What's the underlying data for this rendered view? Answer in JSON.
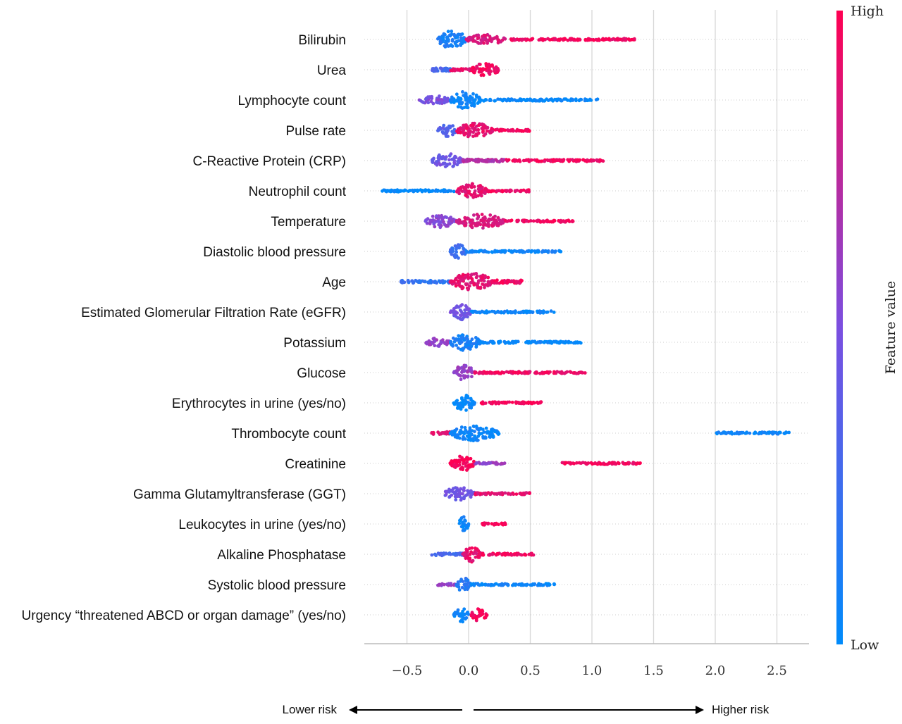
{
  "chart_data": {
    "type": "scatter",
    "subtype": "beeswarm",
    "title": "",
    "xlabel": "",
    "xlim": [
      -0.85,
      2.75
    ],
    "xticks": [
      -0.5,
      0.0,
      0.5,
      1.0,
      1.5,
      2.0,
      2.5
    ],
    "xtick_labels": [
      "−0.5",
      "0.0",
      "0.5",
      "1.0",
      "1.5",
      "2.0",
      "2.5"
    ],
    "grid": true,
    "colorbar": {
      "label": "Feature value",
      "high_label": "High",
      "low_label": "Low",
      "high_color": "#ff0052",
      "mid_color": "#7b4fe0",
      "low_color": "#008bfb"
    },
    "risk_axis": {
      "left_label": "Lower risk",
      "right_label": "Higher risk"
    },
    "features": [
      {
        "name": "Bilirubin",
        "segments": [
          [
            -0.25,
            -0.02,
            0.1,
            13
          ],
          [
            -0.02,
            0.3,
            0.85,
            7
          ],
          [
            0.3,
            1.35,
            0.95,
            3
          ]
        ]
      },
      {
        "name": "Urea",
        "segments": [
          [
            -0.3,
            -0.15,
            0.3,
            5
          ],
          [
            -0.15,
            0.02,
            0.9,
            3
          ],
          [
            0.02,
            0.25,
            0.95,
            9
          ]
        ]
      },
      {
        "name": "Lymphocyte count",
        "segments": [
          [
            -0.4,
            -0.15,
            0.5,
            6
          ],
          [
            -0.15,
            0.1,
            0.05,
            12
          ],
          [
            0.1,
            1.05,
            0.02,
            3
          ]
        ]
      },
      {
        "name": "Pulse rate",
        "segments": [
          [
            -0.25,
            -0.1,
            0.35,
            9
          ],
          [
            -0.1,
            0.2,
            0.9,
            10
          ],
          [
            0.2,
            0.5,
            0.95,
            3
          ]
        ]
      },
      {
        "name": "C-Reactive Protein (CRP)",
        "segments": [
          [
            -0.3,
            -0.05,
            0.45,
            10
          ],
          [
            -0.05,
            0.3,
            0.7,
            4
          ],
          [
            0.3,
            1.1,
            0.95,
            3
          ]
        ]
      },
      {
        "name": "Neutrophil count",
        "segments": [
          [
            -0.7,
            -0.1,
            0.02,
            3
          ],
          [
            -0.1,
            0.15,
            0.9,
            11
          ],
          [
            0.15,
            0.5,
            0.95,
            3
          ]
        ]
      },
      {
        "name": "Temperature",
        "segments": [
          [
            -0.35,
            -0.1,
            0.55,
            9
          ],
          [
            -0.1,
            0.3,
            0.85,
            10
          ],
          [
            0.3,
            0.85,
            0.95,
            3
          ]
        ]
      },
      {
        "name": "Diastolic blood pressure",
        "segments": [
          [
            -0.15,
            -0.02,
            0.25,
            10
          ],
          [
            -0.02,
            0.75,
            0.05,
            3
          ]
        ]
      },
      {
        "name": "Age",
        "segments": [
          [
            -0.55,
            -0.15,
            0.2,
            4
          ],
          [
            -0.15,
            0.2,
            0.9,
            12
          ],
          [
            0.2,
            0.45,
            0.95,
            5
          ]
        ]
      },
      {
        "name": "Estimated Glomerular Filtration Rate (eGFR)",
        "segments": [
          [
            -0.15,
            0.02,
            0.45,
            11
          ],
          [
            0.02,
            0.7,
            0.05,
            3
          ]
        ]
      },
      {
        "name": "Potassium",
        "segments": [
          [
            -0.35,
            -0.15,
            0.6,
            6
          ],
          [
            -0.15,
            0.1,
            0.1,
            12
          ],
          [
            0.1,
            0.92,
            0.03,
            3
          ]
        ]
      },
      {
        "name": "Glucose",
        "segments": [
          [
            -0.12,
            0.05,
            0.6,
            11
          ],
          [
            0.05,
            0.95,
            0.93,
            3
          ]
        ]
      },
      {
        "name": "Erythrocytes in urine (yes/no)",
        "segments": [
          [
            -0.12,
            0.05,
            0.02,
            11
          ],
          [
            0.1,
            0.6,
            0.98,
            3
          ]
        ]
      },
      {
        "name": "Thrombocyte count",
        "segments": [
          [
            -0.3,
            -0.15,
            0.9,
            4
          ],
          [
            -0.15,
            0.25,
            0.05,
            11
          ],
          [
            2.0,
            2.6,
            0.05,
            3
          ]
        ]
      },
      {
        "name": "Creatinine",
        "segments": [
          [
            -0.15,
            0.05,
            0.98,
            11
          ],
          [
            0.05,
            0.3,
            0.6,
            3
          ],
          [
            0.75,
            1.4,
            0.95,
            3
          ]
        ]
      },
      {
        "name": "Gamma Glutamyltransferase (GGT)",
        "segments": [
          [
            -0.2,
            0.05,
            0.45,
            10
          ],
          [
            0.05,
            0.5,
            0.9,
            3
          ]
        ]
      },
      {
        "name": "Leukocytes in urine (yes/no)",
        "segments": [
          [
            -0.08,
            0.0,
            0.05,
            11
          ],
          [
            0.1,
            0.3,
            0.98,
            3
          ]
        ]
      },
      {
        "name": "Alkaline Phosphatase",
        "segments": [
          [
            -0.3,
            -0.05,
            0.3,
            4
          ],
          [
            -0.05,
            0.1,
            0.9,
            11
          ],
          [
            0.1,
            0.55,
            0.95,
            3
          ]
        ]
      },
      {
        "name": "Systolic blood pressure",
        "segments": [
          [
            -0.25,
            -0.1,
            0.6,
            3
          ],
          [
            -0.1,
            0.02,
            0.15,
            10
          ],
          [
            0.02,
            0.7,
            0.05,
            3
          ]
        ]
      },
      {
        "name": "Urgency “threatened ABCD or organ damage” (yes/no)",
        "segments": [
          [
            -0.12,
            0.0,
            0.05,
            11
          ],
          [
            0.02,
            0.15,
            0.97,
            9
          ]
        ]
      }
    ]
  }
}
